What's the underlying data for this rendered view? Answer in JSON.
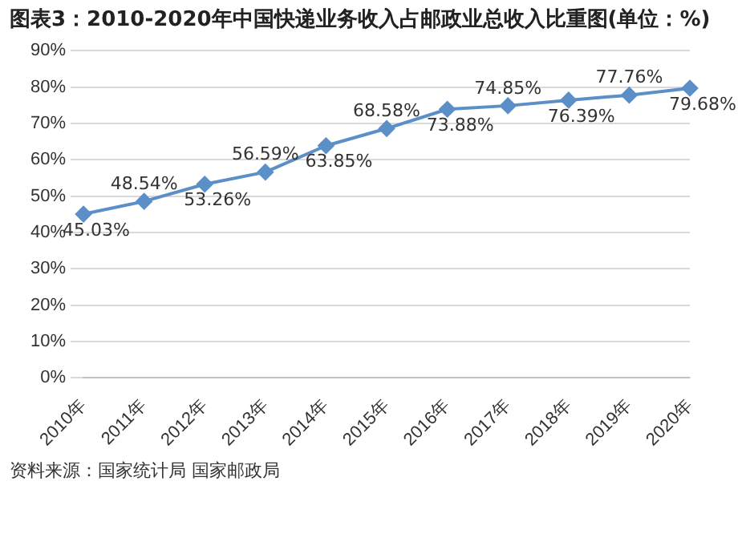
{
  "chart_data": {
    "type": "line",
    "title": "图表3：2010-2020年中国快递业务收入占邮政业总收入比重图(单位：%)",
    "categories": [
      "2010年",
      "2011年",
      "2012年",
      "2013年",
      "2014年",
      "2015年",
      "2016年",
      "2017年",
      "2018年",
      "2019年",
      "2020年"
    ],
    "series": [
      {
        "color": "#5b8fc7",
        "values": [
          45.03,
          48.54,
          53.26,
          56.59,
          63.85,
          68.58,
          73.88,
          74.85,
          76.39,
          77.76,
          79.68
        ],
        "value_labels": [
          "45.03%",
          "48.54%",
          "53.26%",
          "56.59%",
          "63.85%",
          "68.58%",
          "73.88%",
          "74.85%",
          "76.39%",
          "77.76%",
          "79.68%"
        ]
      }
    ],
    "ylim": [
      0,
      90
    ],
    "yticks": [
      {
        "value": 0,
        "label": "0%"
      },
      {
        "value": 10,
        "label": "10%"
      },
      {
        "value": 20,
        "label": "20%"
      },
      {
        "value": 30,
        "label": "30%"
      },
      {
        "value": 40,
        "label": "40%"
      },
      {
        "value": 50,
        "label": "50%"
      },
      {
        "value": 60,
        "label": "60%"
      },
      {
        "value": 70,
        "label": "70%"
      },
      {
        "value": 80,
        "label": "80%"
      },
      {
        "value": 90,
        "label": "90%"
      }
    ],
    "grid": "y",
    "legend": false,
    "marker": "diamond",
    "line_style": "solid",
    "annotations": [
      "资料来源：国家统计局 国家邮政局"
    ]
  }
}
